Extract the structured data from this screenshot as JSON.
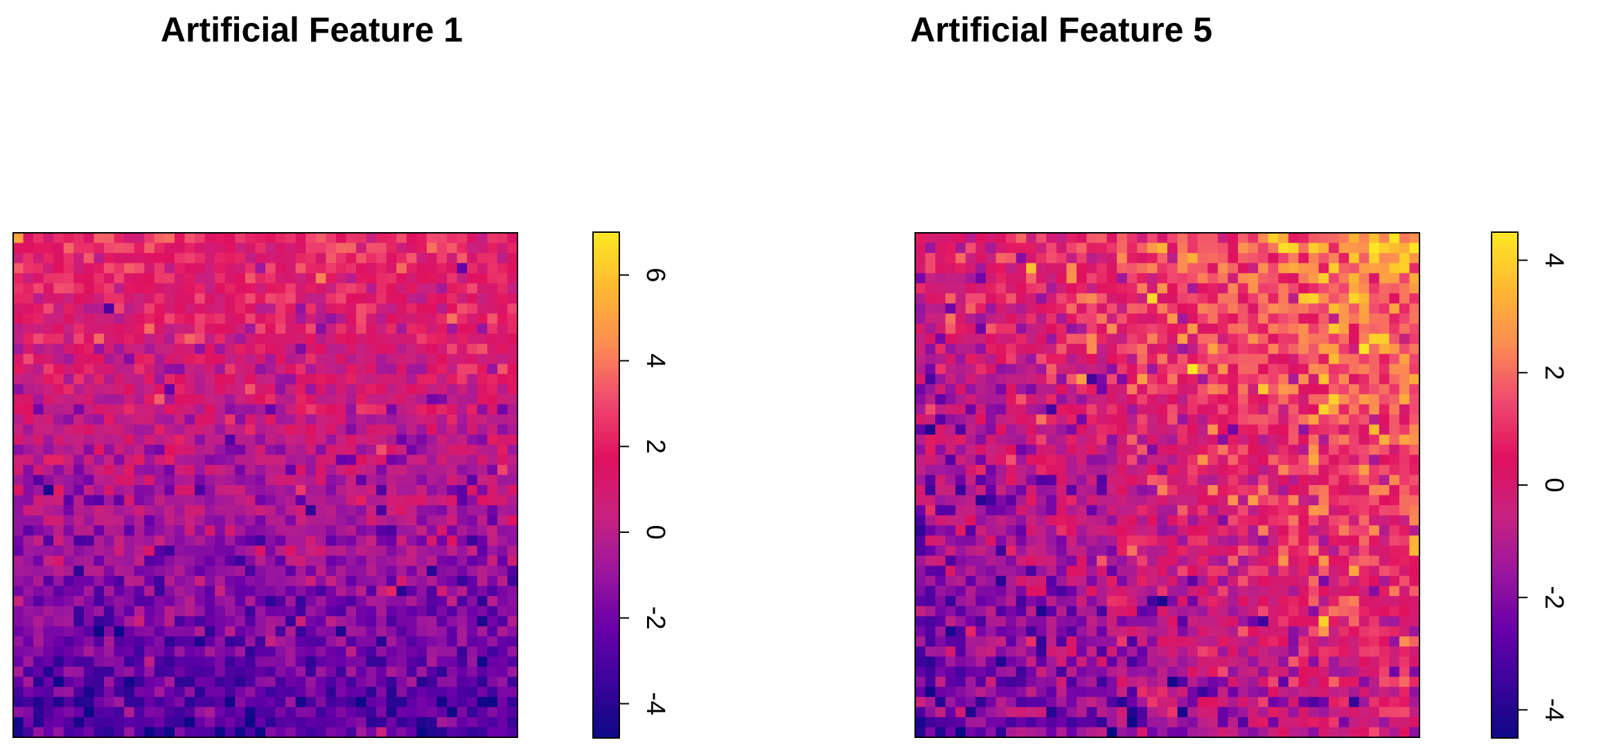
{
  "chart_data": [
    {
      "type": "heatmap",
      "title": "Artificial Feature 1",
      "grid_size": [
        50,
        50
      ],
      "colormap": "plasma",
      "value_range": [
        -4.8,
        7.0
      ],
      "colorbar_ticks": [
        "-4",
        "-2",
        "0",
        "2",
        "4",
        "6"
      ],
      "colorbar_tick_values": [
        -4,
        -2,
        0,
        2,
        4,
        6
      ],
      "trend": "vertical gradient: high values at top (~1.5 to 2.5), low values at bottom (~-3)"
    },
    {
      "type": "heatmap",
      "title": "Artificial Feature 5",
      "grid_size": [
        50,
        50
      ],
      "colormap": "plasma",
      "value_range": [
        -4.5,
        4.5
      ],
      "colorbar_ticks": [
        "-4",
        "-2",
        "0",
        "2",
        "4"
      ],
      "colorbar_tick_values": [
        -4,
        -2,
        0,
        2,
        4
      ],
      "trend": "diagonal gradient: low values at bottom-left (~-2.5), high values at top-right (~3)"
    }
  ],
  "colors": {
    "plasma_stops": [
      "#0d0887",
      "#3a049a",
      "#6a00a8",
      "#9c179e",
      "#c9217f",
      "#e0115f",
      "#f04870",
      "#fb8b53",
      "#feb732",
      "#fde724"
    ]
  }
}
